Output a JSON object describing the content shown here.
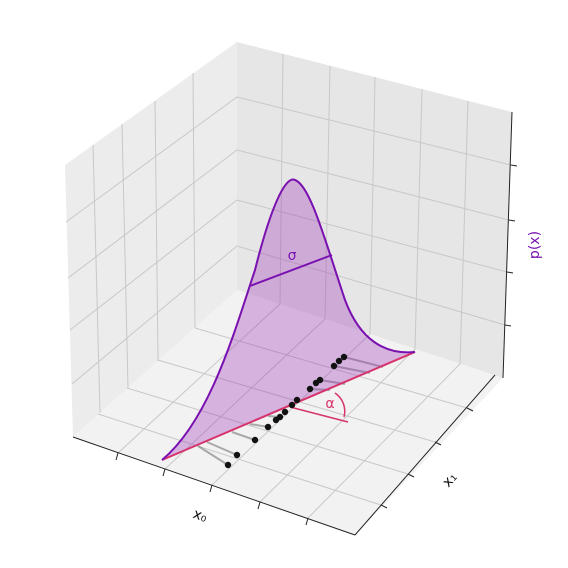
{
  "labels": {
    "sigma": "σ",
    "alpha": "α",
    "x_axis": "x₀",
    "y_axis": "x₁",
    "z_axis": "p(x)"
  }
}
